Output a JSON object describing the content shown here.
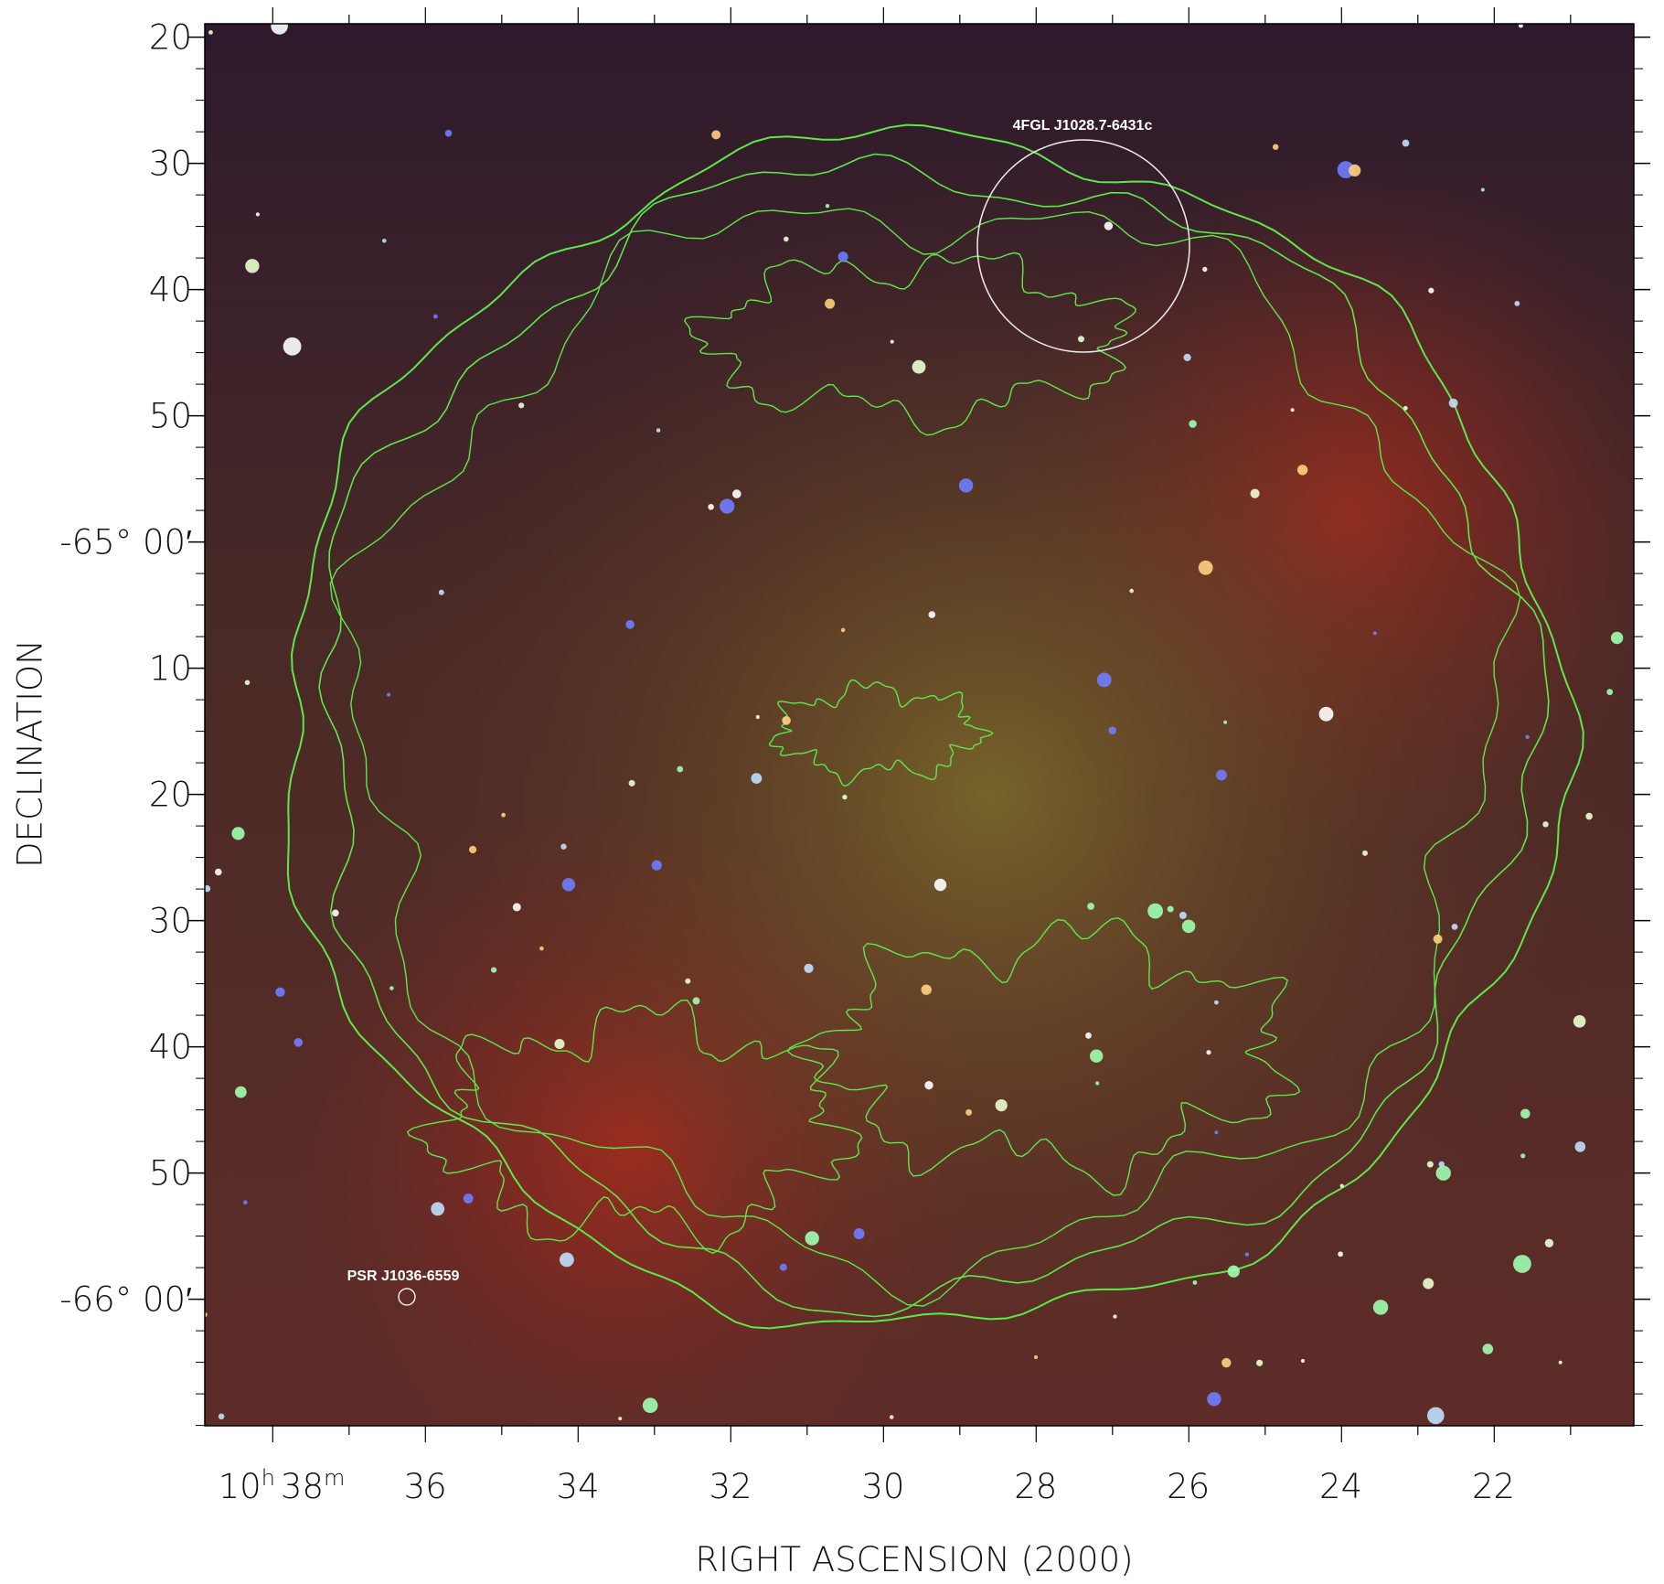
{
  "figure": {
    "y_axis_label": "DECLINATION",
    "x_axis_label": "RIGHT ASCENSION  (2000)",
    "y_tick_labels": [
      "20",
      "30",
      "40",
      "50",
      "-65° 00′",
      "10",
      "20",
      "30",
      "40",
      "50",
      "-66° 00′"
    ],
    "x_first_label": {
      "hour": "10",
      "hour_unit": "h",
      "minute": "38",
      "minute_unit": "m"
    },
    "x_tick_labels": [
      "36",
      "34",
      "32",
      "30",
      "28",
      "26",
      "24",
      "22"
    ],
    "annotations": {
      "gamma_source": "4FGL J1028.7-6431c",
      "pulsar": "PSR J1036-6559"
    }
  }
}
